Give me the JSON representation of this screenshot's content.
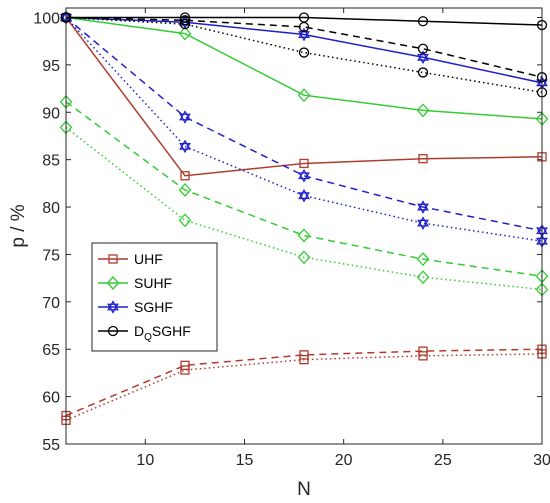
{
  "chart_data": {
    "type": "line",
    "xlabel": "N",
    "ylabel": "p / %",
    "xlim": [
      6,
      30
    ],
    "ylim": [
      55,
      101
    ],
    "xticks": [
      10,
      15,
      20,
      25,
      30
    ],
    "yticks": [
      55,
      60,
      65,
      70,
      75,
      80,
      85,
      90,
      95,
      100
    ],
    "x": [
      6,
      12,
      18,
      24,
      30
    ],
    "grid": false,
    "legend_position": "bottom-left",
    "colors": {
      "UHF": "#b03a2e",
      "SUHF": "#33cc33",
      "SGHF": "#1f1fcc",
      "DQSGHF": "#000000"
    },
    "legend": [
      {
        "label": "UHF",
        "sub": "",
        "rest": "",
        "marker": "square",
        "color": "#b03a2e"
      },
      {
        "label": "SUHF",
        "sub": "",
        "rest": "",
        "marker": "diamond",
        "color": "#33cc33"
      },
      {
        "label": "SGHF",
        "sub": "",
        "rest": "",
        "marker": "hexagram",
        "color": "#1f1fcc"
      },
      {
        "label": "D",
        "sub": "Q",
        "rest": "SGHF",
        "marker": "circle",
        "color": "#000000"
      }
    ],
    "series": [
      {
        "name": "UHF",
        "style": "solid",
        "marker": "square",
        "color": "#b03a2e",
        "values": [
          100,
          83.3,
          84.6,
          85.1,
          85.3
        ]
      },
      {
        "name": "UHF",
        "style": "dashed",
        "marker": "square",
        "color": "#b03a2e",
        "values": [
          58.0,
          63.3,
          64.4,
          64.8,
          65.0
        ]
      },
      {
        "name": "UHF",
        "style": "dotted",
        "marker": "square",
        "color": "#b03a2e",
        "values": [
          57.5,
          62.8,
          63.9,
          64.3,
          64.5
        ]
      },
      {
        "name": "SUHF",
        "style": "solid",
        "marker": "diamond",
        "color": "#33cc33",
        "values": [
          100,
          98.3,
          91.8,
          90.2,
          89.3
        ]
      },
      {
        "name": "SUHF",
        "style": "dashed",
        "marker": "diamond",
        "color": "#33cc33",
        "values": [
          91.1,
          81.8,
          77.0,
          74.5,
          72.7
        ]
      },
      {
        "name": "SUHF",
        "style": "dotted",
        "marker": "diamond",
        "color": "#33cc33",
        "values": [
          88.4,
          78.6,
          74.7,
          72.6,
          71.3
        ]
      },
      {
        "name": "SGHF",
        "style": "solid",
        "marker": "hexagram",
        "color": "#1f1fcc",
        "values": [
          100,
          99.5,
          98.2,
          95.8,
          93.1
        ]
      },
      {
        "name": "SGHF",
        "style": "dashed",
        "marker": "hexagram",
        "color": "#1f1fcc",
        "values": [
          100,
          89.5,
          83.3,
          80.0,
          77.5
        ]
      },
      {
        "name": "SGHF",
        "style": "dotted",
        "marker": "hexagram",
        "color": "#1f1fcc",
        "values": [
          100,
          86.4,
          81.2,
          78.3,
          76.4
        ]
      },
      {
        "name": "DQSGHF",
        "style": "solid",
        "marker": "circle",
        "color": "#000000",
        "values": [
          100,
          100,
          100,
          99.6,
          99.2
        ]
      },
      {
        "name": "DQSGHF",
        "style": "dashed",
        "marker": "circle",
        "color": "#000000",
        "values": [
          100,
          99.7,
          99.0,
          96.7,
          93.7
        ]
      },
      {
        "name": "DQSGHF",
        "style": "dotted",
        "marker": "circle",
        "color": "#000000",
        "values": [
          100,
          99.3,
          96.3,
          94.2,
          92.1
        ]
      }
    ]
  }
}
